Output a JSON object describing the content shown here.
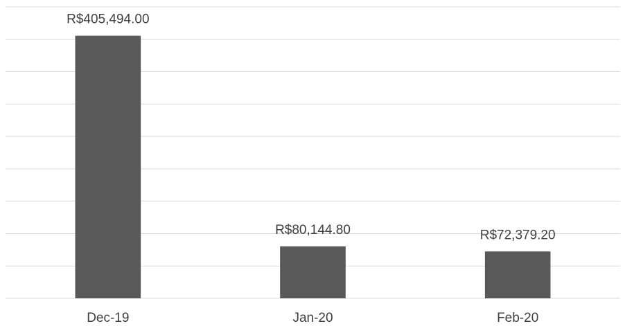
{
  "chart_data": {
    "type": "bar",
    "categories": [
      "Dec-19",
      "Jan-20",
      "Feb-20"
    ],
    "values": [
      405494.0,
      80144.8,
      72379.2
    ],
    "value_labels": [
      "R$405,494.00",
      "R$80,144.80",
      "R$72,379.20"
    ],
    "color": "#595959",
    "ylim": [
      0,
      450000
    ],
    "yticks": [
      0,
      50000,
      100000,
      150000,
      200000,
      250000,
      300000,
      350000,
      400000,
      450000
    ],
    "grid": true
  }
}
